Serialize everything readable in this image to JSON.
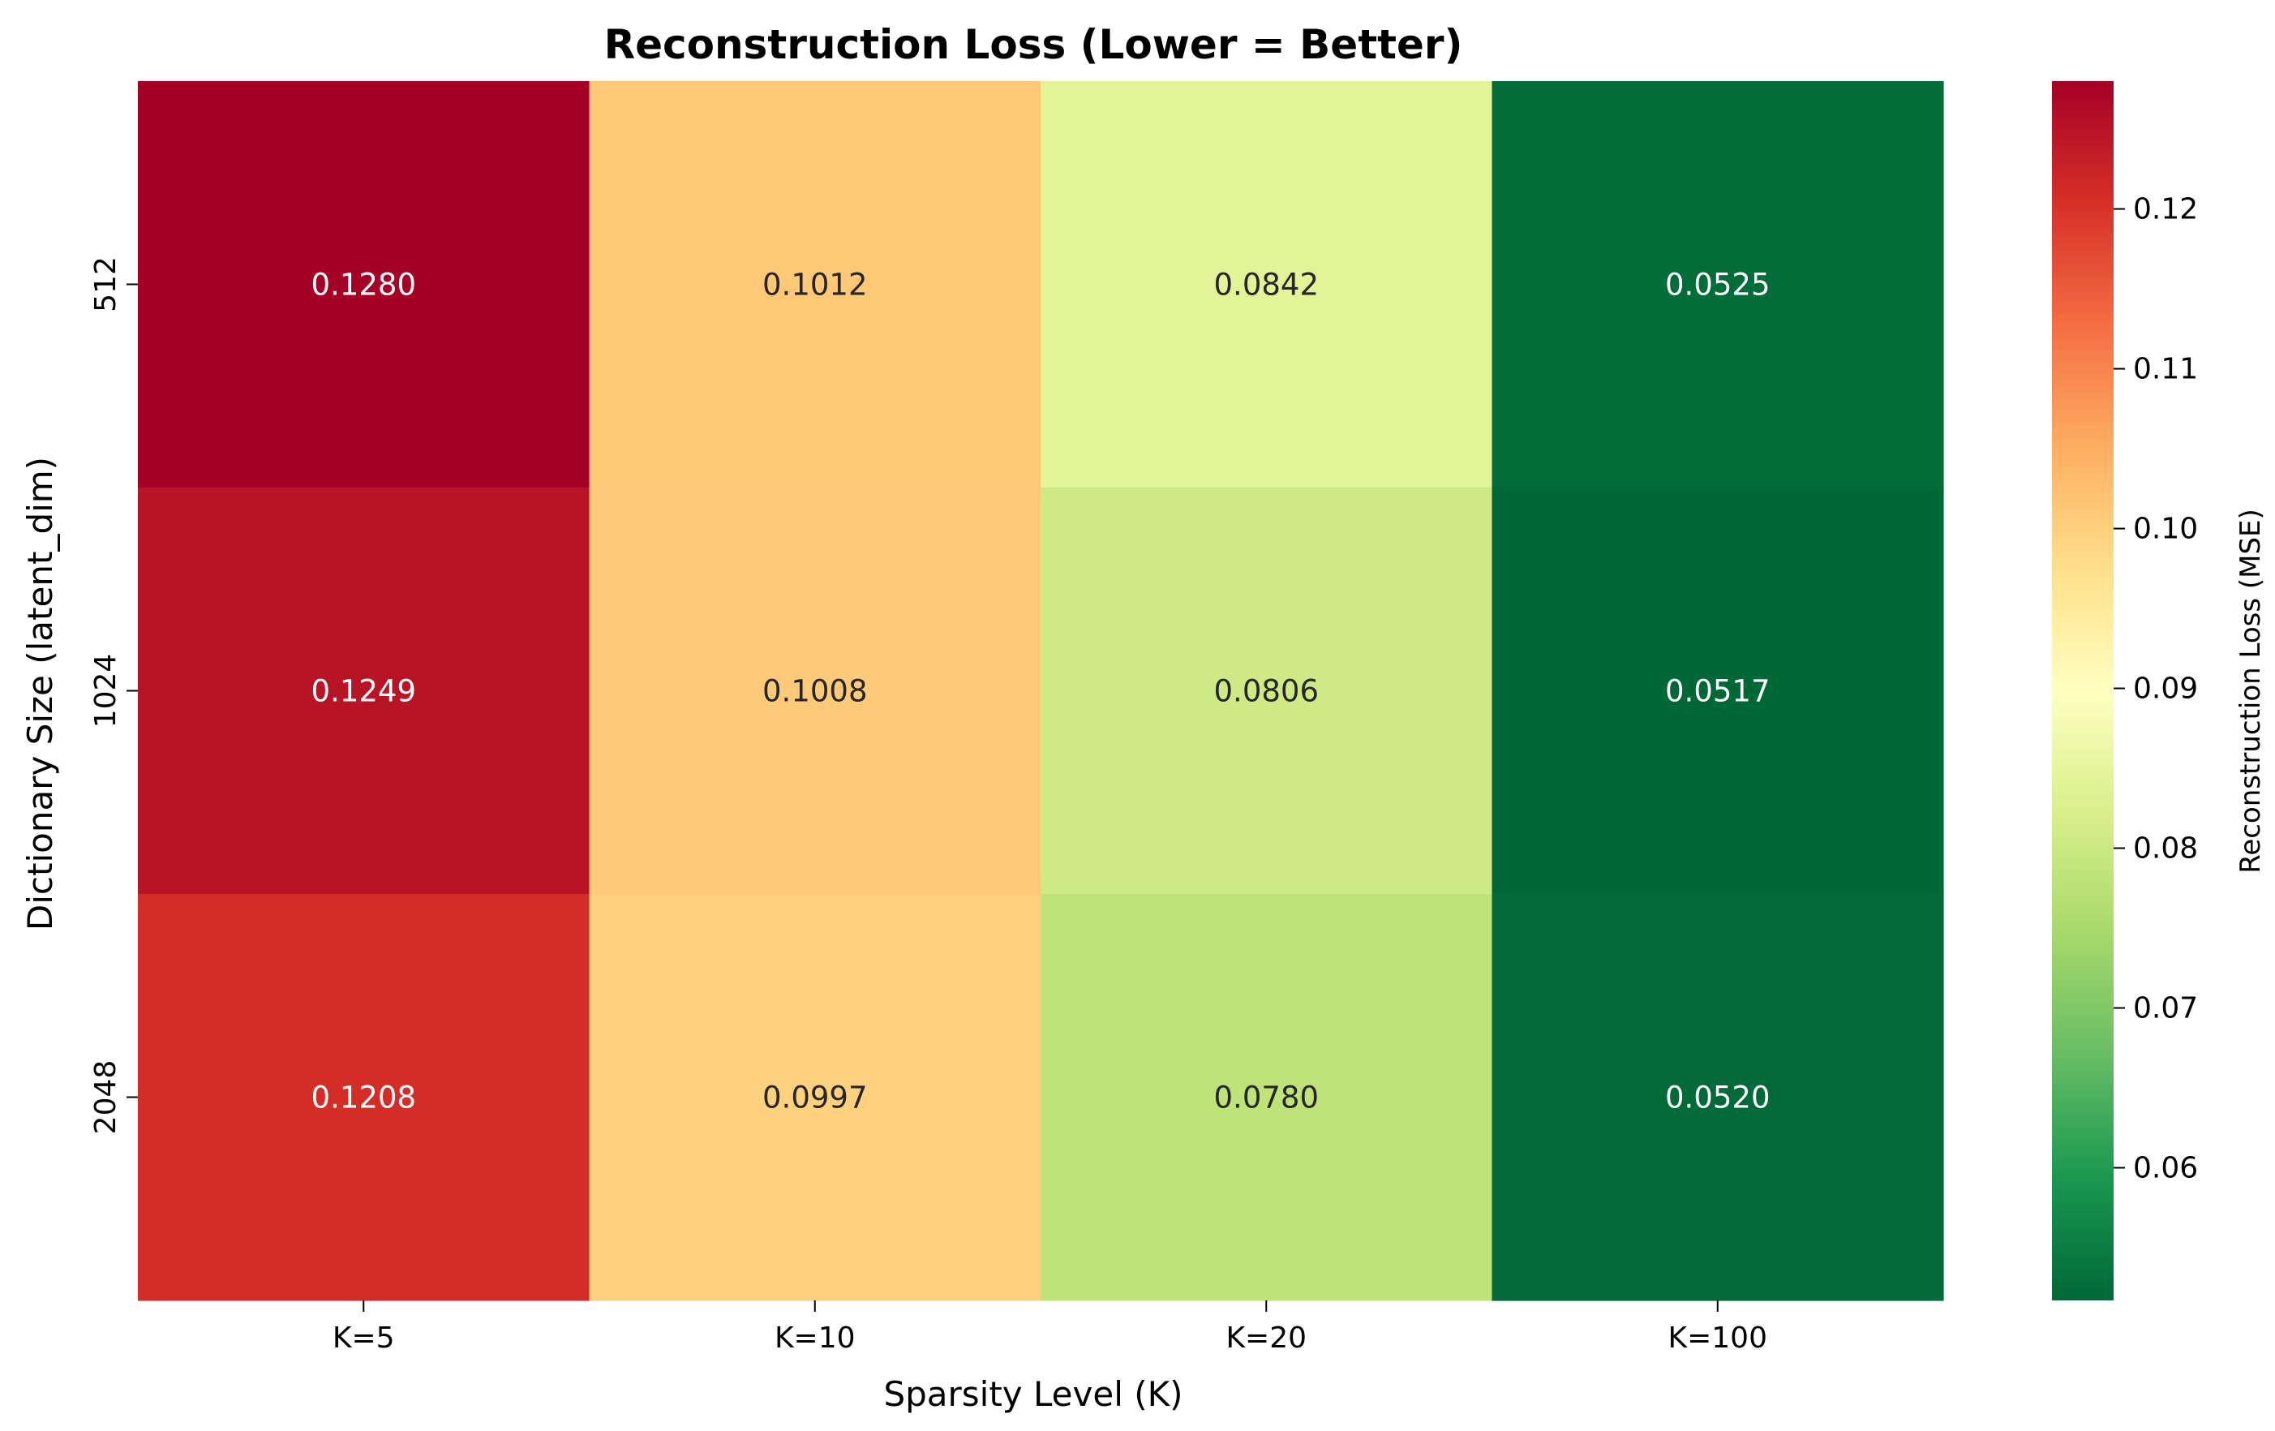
{
  "chart_data": {
    "type": "heatmap",
    "title": "Reconstruction Loss (Lower = Better)",
    "xlabel": "Sparsity Level (K)",
    "ylabel": "Dictionary Size (latent_dim)",
    "x_categories": [
      "K=5",
      "K=10",
      "K=20",
      "K=100"
    ],
    "y_categories": [
      "512",
      "1024",
      "2048"
    ],
    "values": [
      [
        0.128,
        0.1012,
        0.0842,
        0.0525
      ],
      [
        0.1249,
        0.1008,
        0.0806,
        0.0517
      ],
      [
        0.1208,
        0.0997,
        0.078,
        0.052
      ]
    ],
    "cell_labels": [
      [
        "0.1280",
        "0.1012",
        "0.0842",
        "0.0525"
      ],
      [
        "0.1249",
        "0.1008",
        "0.0806",
        "0.0517"
      ],
      [
        "0.1208",
        "0.0997",
        "0.0780",
        "0.0520"
      ]
    ],
    "colormap": "RdYlGn_r",
    "colormap_stops": [
      "#006837",
      "#1a9850",
      "#66bd63",
      "#a6d96a",
      "#d9ef8b",
      "#ffffbf",
      "#fee08b",
      "#fdae61",
      "#f46d43",
      "#d73027",
      "#a50026"
    ],
    "vmin": 0.0517,
    "vmax": 0.128,
    "colorbar": {
      "label": "Reconstruction Loss (MSE)",
      "ticks": [
        0.06,
        0.07,
        0.08,
        0.09,
        0.1,
        0.11,
        0.12
      ],
      "tick_labels": [
        "0.06",
        "0.07",
        "0.08",
        "0.09",
        "0.10",
        "0.11",
        "0.12"
      ]
    },
    "grid": false,
    "annotation_colors": {
      "light": "#ffffff",
      "dark": "#262626"
    }
  }
}
